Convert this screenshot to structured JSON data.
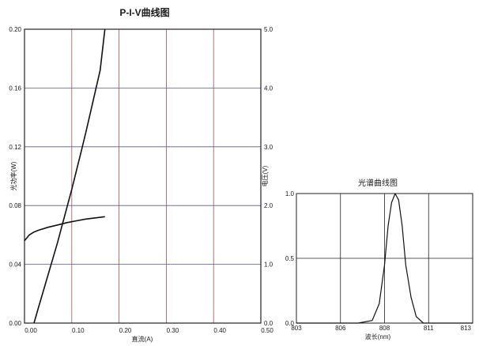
{
  "chart_data": [
    {
      "type": "line",
      "title": "P-I-V曲线图",
      "xlabel": "直流(A)",
      "ylabel_left": "光功率(W)",
      "ylabel_right": "电压(V)",
      "xlim": [
        0,
        0.5
      ],
      "ylim_left": [
        0,
        0.2
      ],
      "ylim_right": [
        0,
        5.0
      ],
      "grid": true,
      "x_ticks": [
        "0.00",
        "0.10",
        "0.20",
        "0.30",
        "0.40",
        "0.50"
      ],
      "y_left_ticks": [
        "0.00",
        "0.04",
        "0.08",
        "0.12",
        "0.16",
        "0.20"
      ],
      "y_right_ticks": [
        "0.0",
        "1.0",
        "2.0",
        "3.0",
        "4.0",
        "5.0"
      ],
      "series": [
        {
          "axis": "left",
          "x": [
            0.02,
            0.03,
            0.04,
            0.05,
            0.06,
            0.07,
            0.08,
            0.09,
            0.1,
            0.11,
            0.12,
            0.13,
            0.14,
            0.15,
            0.16,
            0.17
          ],
          "y": [
            0.0,
            0.011,
            0.022,
            0.033,
            0.044,
            0.055,
            0.067,
            0.079,
            0.091,
            0.104,
            0.117,
            0.13,
            0.144,
            0.158,
            0.172,
            0.2
          ]
        },
        {
          "axis": "right",
          "x": [
            0.0,
            0.005,
            0.01,
            0.02,
            0.03,
            0.05,
            0.07,
            0.09,
            0.11,
            0.13,
            0.15,
            0.17
          ],
          "y": [
            1.4,
            1.45,
            1.5,
            1.55,
            1.58,
            1.63,
            1.67,
            1.71,
            1.74,
            1.77,
            1.79,
            1.81
          ]
        }
      ]
    },
    {
      "type": "line",
      "title": "光谱曲线图",
      "xlabel": "波长(nm)",
      "xlim": [
        803,
        813
      ],
      "ylim": [
        0,
        1.0
      ],
      "grid": true,
      "x_ticks": [
        "803",
        "806",
        "808",
        "811",
        "813"
      ],
      "y_ticks": [
        "0.0",
        "0.5",
        "1.0"
      ],
      "series": [
        {
          "x": [
            803,
            806.5,
            807.3,
            807.7,
            808.0,
            808.2,
            808.4,
            808.6,
            808.8,
            809.0,
            809.2,
            809.5,
            809.8,
            810.2,
            813
          ],
          "y": [
            0,
            0,
            0.02,
            0.15,
            0.45,
            0.75,
            0.93,
            1.0,
            0.95,
            0.75,
            0.45,
            0.2,
            0.05,
            0,
            0
          ]
        }
      ]
    }
  ]
}
